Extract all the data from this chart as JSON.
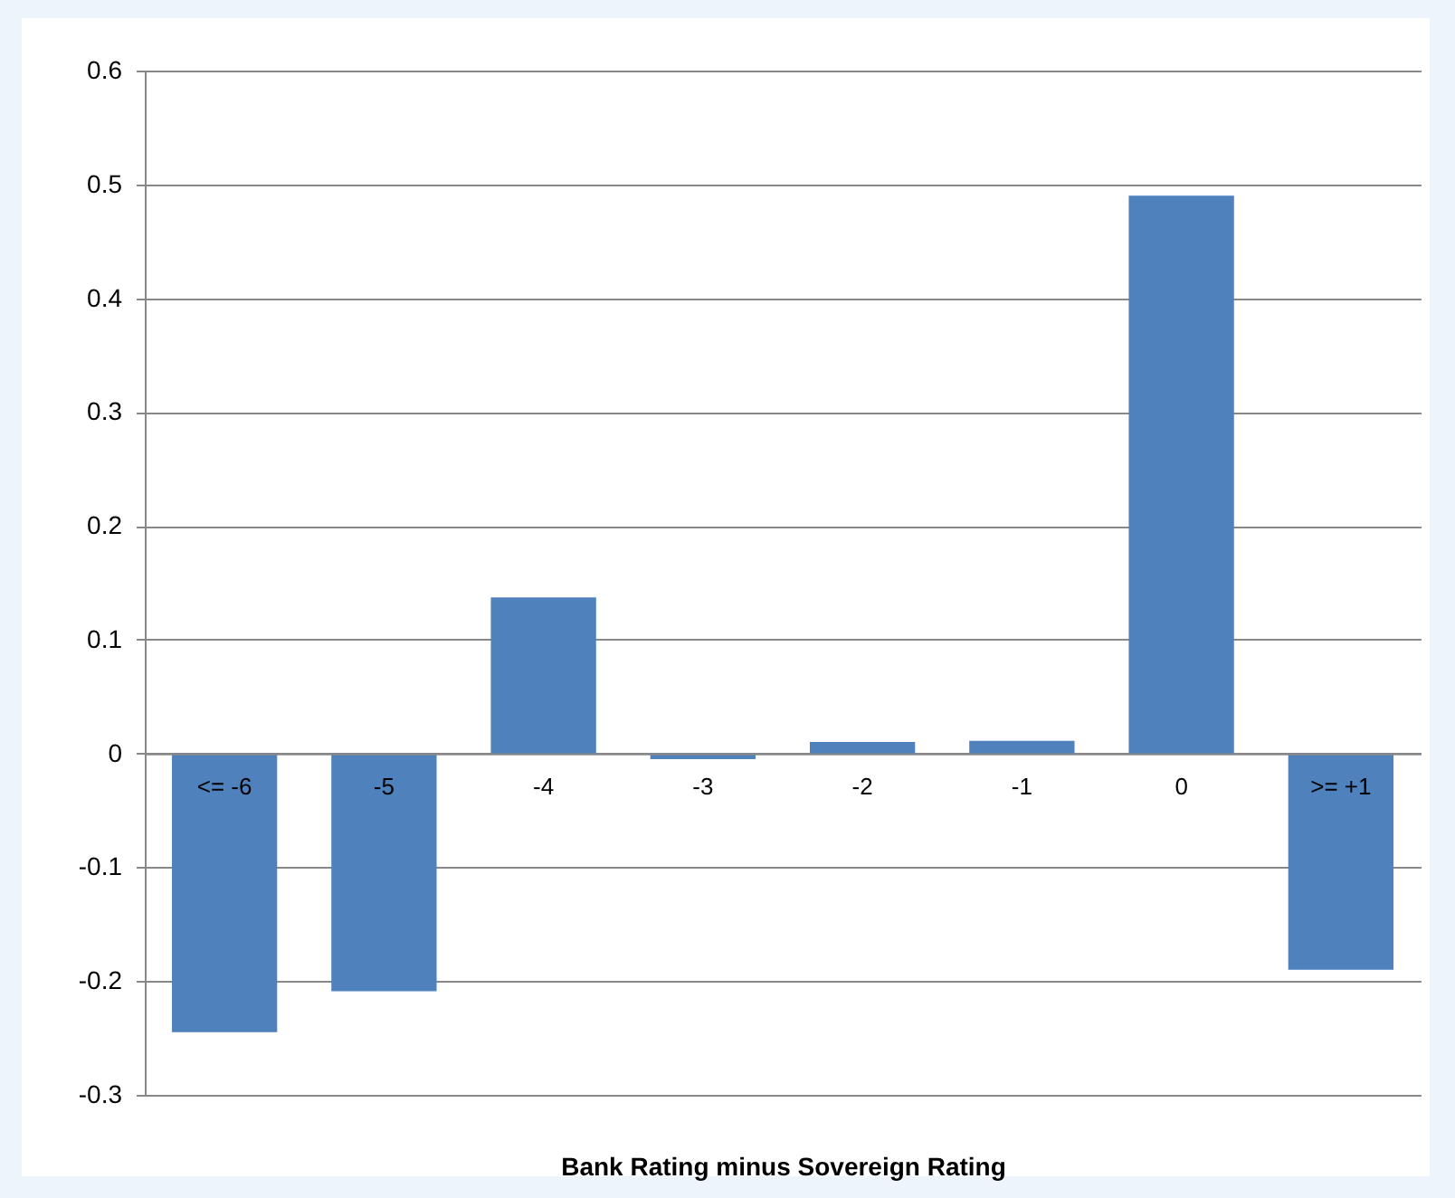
{
  "chart_data": {
    "type": "bar",
    "xlabel": "Bank Rating minus Sovereign Rating",
    "categories": [
      "<= -6",
      "-5",
      "-4",
      "-3",
      "-2",
      "-1",
      "0",
      ">= +1"
    ],
    "values": [
      -0.245,
      -0.209,
      0.137,
      -0.005,
      0.01,
      0.011,
      0.49,
      -0.19
    ],
    "color": "#4f81bd",
    "ylim": [
      -0.3,
      0.6
    ],
    "yticks": [
      -0.3,
      -0.2,
      -0.1,
      0,
      0.1,
      0.2,
      0.3,
      0.4,
      0.5,
      0.6
    ],
    "grid": "y"
  }
}
